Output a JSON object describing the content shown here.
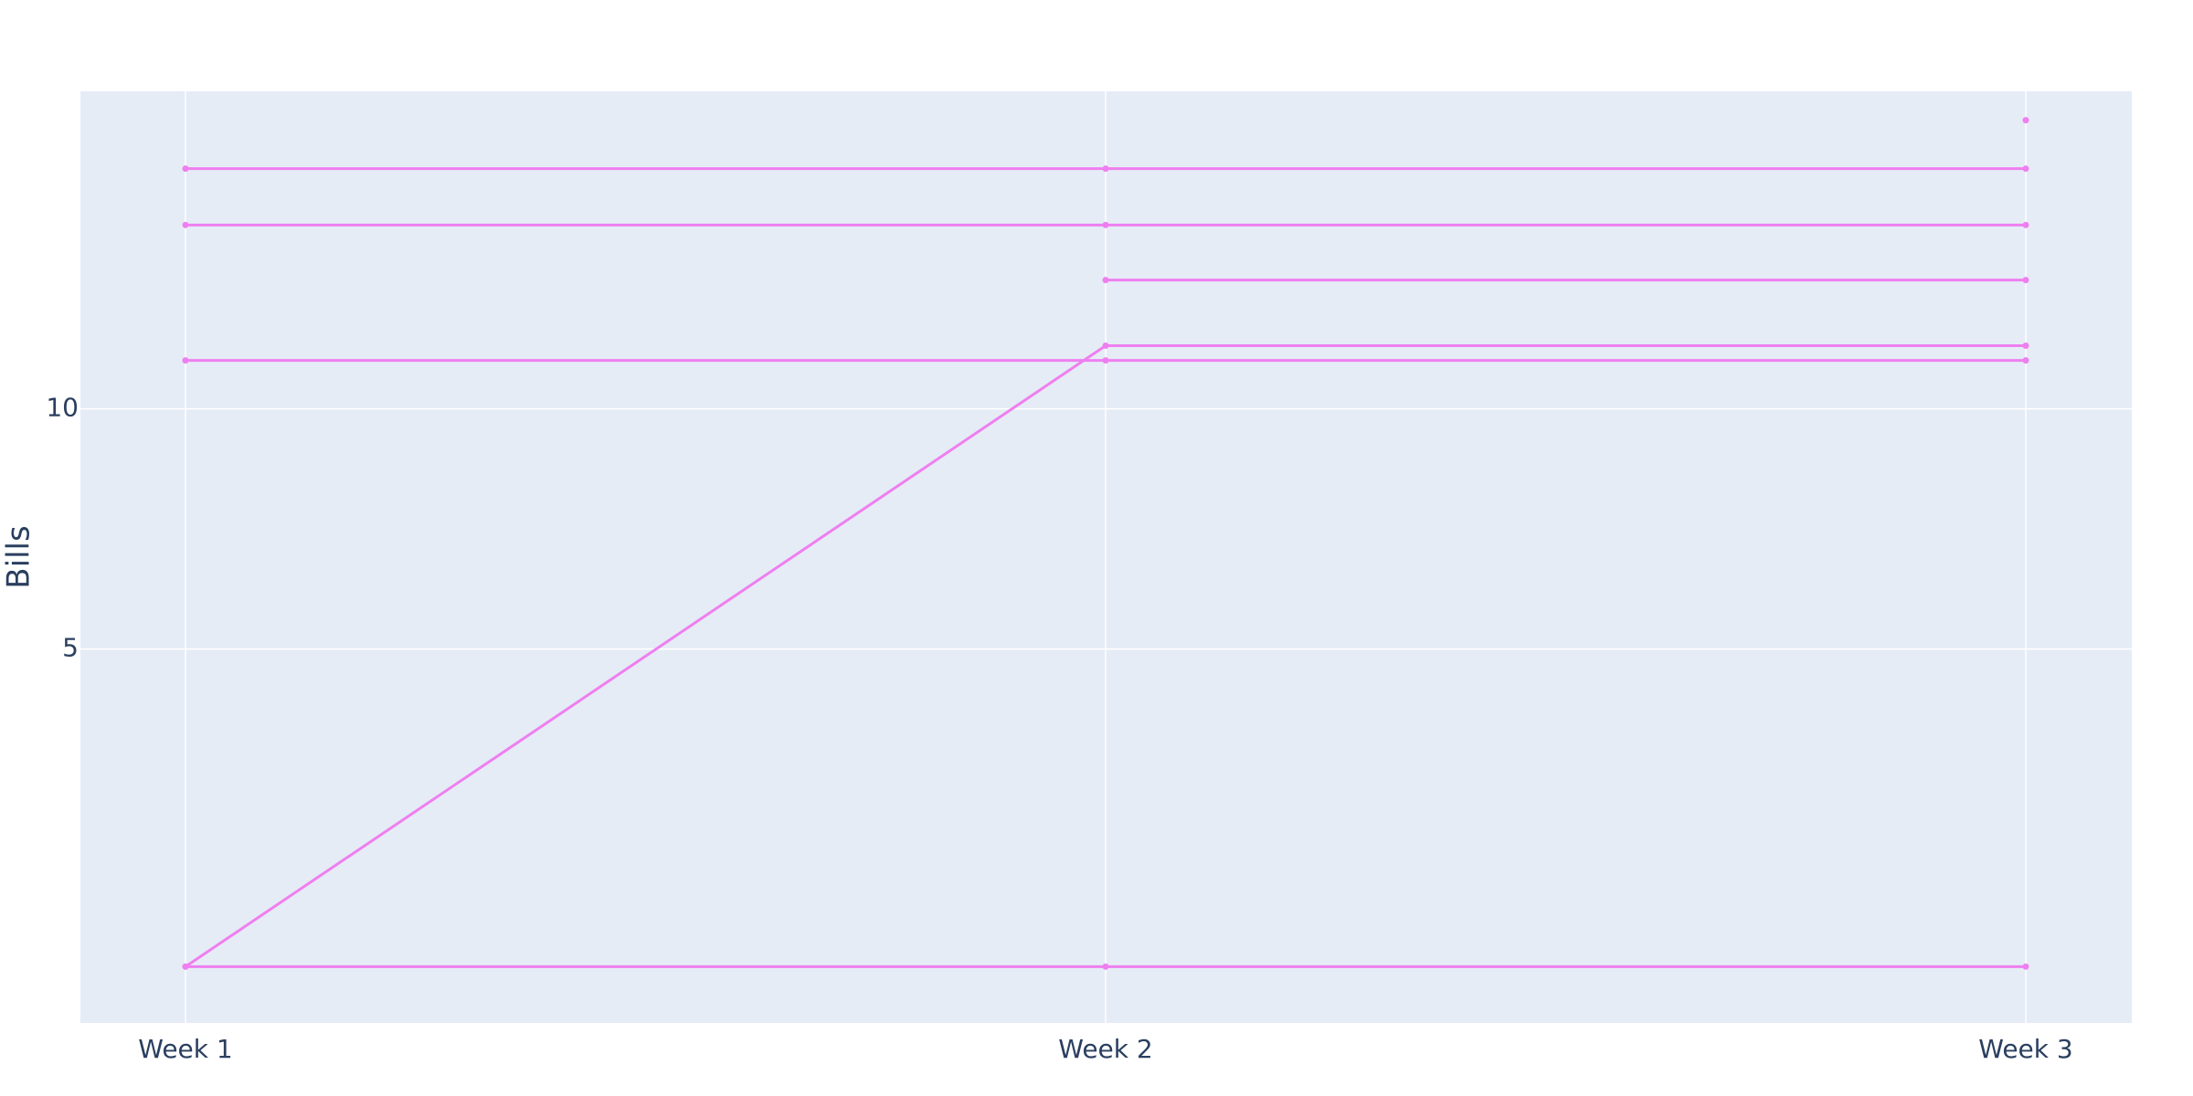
{
  "chart_data": {
    "type": "line",
    "title": "",
    "xlabel": "",
    "ylabel": "Bills",
    "scale": {
      "y": "log"
    },
    "categories": [
      "Week 1",
      "Week 2",
      "Week 3"
    ],
    "ylim": [
      1.7,
      25
    ],
    "yticks": [
      5,
      10
    ],
    "grid": true,
    "legend": "none",
    "colors": {
      "plot_bg": "#E5ECF6",
      "grid": "#FFFFFF",
      "line": "#EF7FF0",
      "text": "#2a3f5f"
    },
    "series": [
      {
        "values": [
          2,
          12,
          12
        ]
      },
      {
        "values": [
          2,
          2,
          2
        ]
      },
      {
        "values": [
          11.5,
          11.5,
          11.5
        ]
      },
      {
        "values": [
          17,
          17,
          17
        ]
      },
      {
        "values": [
          20,
          20,
          20
        ]
      },
      {
        "values": [
          null,
          14.5,
          14.5
        ]
      },
      {
        "values": [
          null,
          null,
          23
        ]
      }
    ]
  }
}
